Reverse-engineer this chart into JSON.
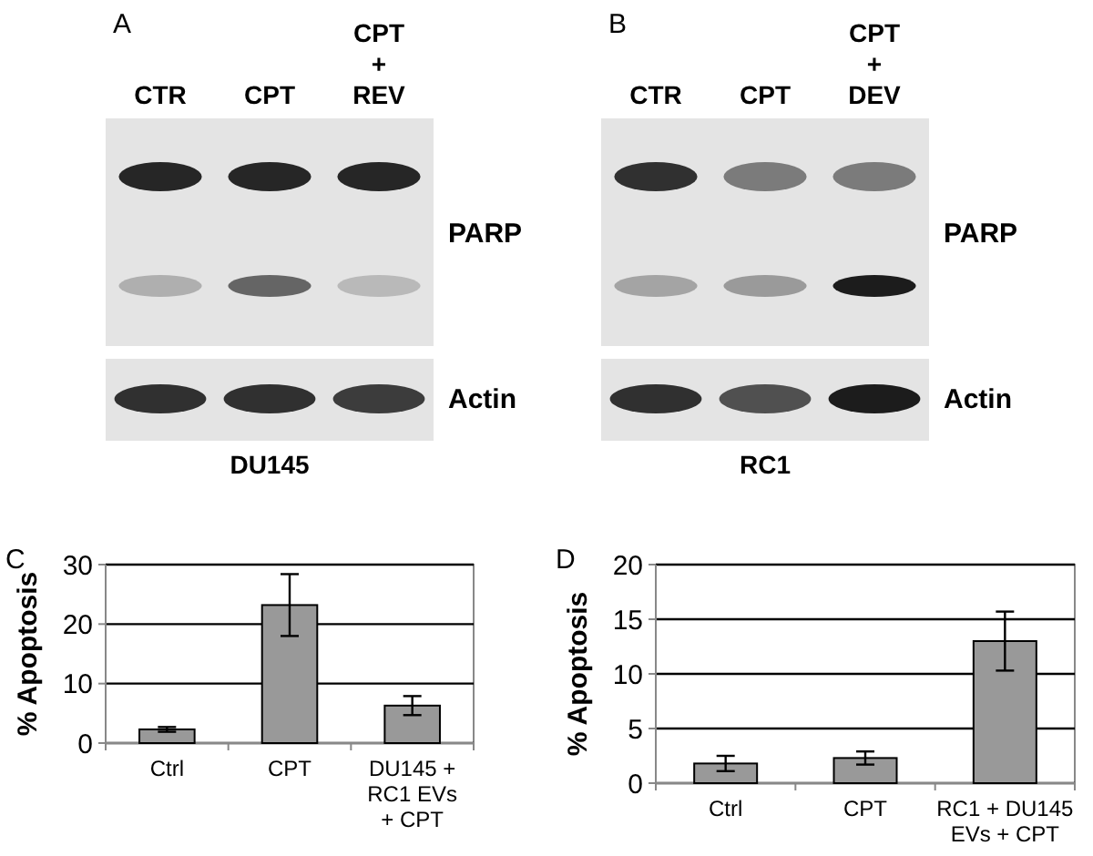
{
  "chart_data": [
    {
      "type": "other",
      "title": "A",
      "categories": [
        "CTR",
        "CPT",
        "CPT + REV"
      ],
      "annotations": [
        "PARP",
        "Actin",
        "DU145"
      ]
    },
    {
      "type": "other",
      "title": "B",
      "categories": [
        "CTR",
        "CPT",
        "CPT + DEV"
      ],
      "annotations": [
        "PARP",
        "Actin",
        "RC1"
      ]
    },
    {
      "type": "bar",
      "title": "C",
      "ylabel": "% Apoptosis",
      "categories": [
        "Ctrl",
        "CPT",
        "DU145 + RC1 EVs + CPT"
      ],
      "values": [
        2.3,
        23.2,
        6.3
      ],
      "errors": [
        0.4,
        5.2,
        1.6
      ],
      "color": "#999999",
      "ylim": [
        0,
        30
      ],
      "yticks": [
        0,
        10,
        20,
        30
      ],
      "grid": "y"
    },
    {
      "type": "bar",
      "title": "D",
      "ylabel": "% Apoptosis",
      "categories": [
        "Ctrl",
        "CPT",
        "RC1 + DU145 EVs + CPT"
      ],
      "values": [
        1.8,
        2.3,
        13.0
      ],
      "errors": [
        0.7,
        0.6,
        2.7
      ],
      "color": "#999999",
      "ylim": [
        0,
        20
      ],
      "yticks": [
        0,
        5,
        10,
        15,
        20
      ],
      "grid": "y"
    }
  ]
}
